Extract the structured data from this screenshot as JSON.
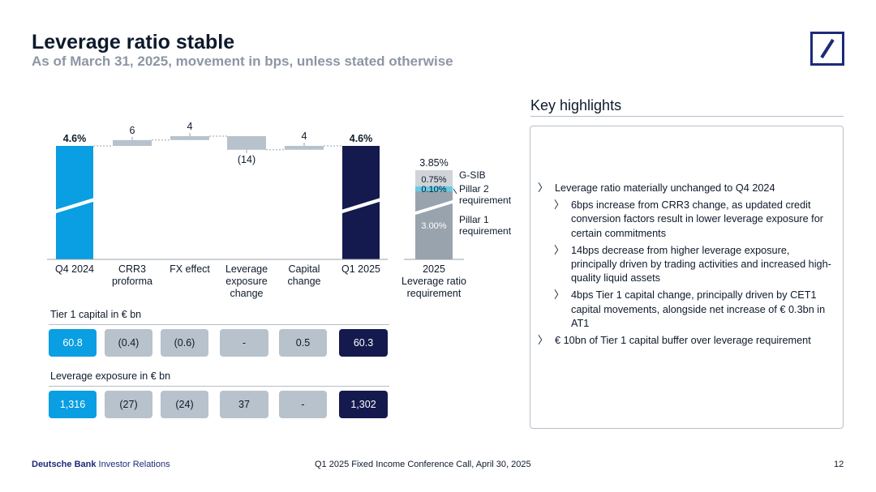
{
  "header": {
    "title": "Leverage ratio stable",
    "subtitle": "As of March 31, 2025, movement in bps, unless stated otherwise"
  },
  "logo": {
    "icon": "deutsche-bank-logo-icon",
    "color": "#1d2a7a"
  },
  "colors": {
    "start_bar": "#0a9ee2",
    "end_bar": "#141a4e",
    "movement": "#b7c2cc",
    "requirement_total": "#d0d4d9",
    "pillar2": "#63cde6",
    "pillar1": "#98a3ae"
  },
  "chart_data": [
    {
      "type": "waterfall",
      "categories": [
        "Q4 2024",
        "CRR3 proforma",
        "FX effect",
        "Leverage exposure change",
        "Capital change",
        "Q1 2025"
      ],
      "start": {
        "label": "4.6%",
        "value": 4.6
      },
      "movements_bps": [
        6,
        4,
        -14,
        4
      ],
      "movement_labels": [
        "6",
        "4",
        "(14)",
        "4"
      ],
      "end": {
        "label": "4.6%",
        "value": 4.6
      },
      "axis_break": true
    },
    {
      "type": "stacked-bar",
      "category": "2025 Leverage ratio requirement",
      "total_label": "3.85%",
      "stack": [
        {
          "name": "Pillar 1 requirement",
          "value": 3.0,
          "label": "3.00%"
        },
        {
          "name": "Pillar 2 requirement",
          "value": 0.1,
          "label": "0.10%"
        },
        {
          "name": "G-SIB",
          "value": 0.75,
          "label": "0.75%"
        }
      ],
      "axis_break": true
    }
  ],
  "tier1": {
    "label": "Tier 1 capital in € bn",
    "values": [
      "60.8",
      "(0.4)",
      "(0.6)",
      "-",
      "0.5",
      "60.3"
    ]
  },
  "exposure": {
    "label": "Leverage exposure in € bn",
    "values": [
      "1,316",
      "(27)",
      "(24)",
      "37",
      "-",
      "1,302"
    ]
  },
  "key_highlights": {
    "title": "Key highlights",
    "bullets": [
      {
        "text": "Leverage ratio materially unchanged to Q4 2024",
        "level": 0
      },
      {
        "text": "6bps increase from CRR3 change, as updated credit conversion factors result in lower leverage exposure for certain commitments",
        "level": 1
      },
      {
        "text": "14bps decrease from higher leverage exposure, principally driven by trading activities and increased high-quality liquid assets",
        "level": 1
      },
      {
        "text": "4bps Tier 1 capital change, principally driven by CET1 capital movements, alongside net increase of € 0.3bn in AT1",
        "level": 1
      },
      {
        "text": "€ 10bn of Tier 1 capital buffer over leverage requirement",
        "level": 0
      }
    ]
  },
  "footer": {
    "brand": "Deutsche Bank",
    "brand_suffix": " Investor Relations",
    "event": "Q1 2025 Fixed Income Conference Call, April 30, 2025",
    "page": "12"
  }
}
